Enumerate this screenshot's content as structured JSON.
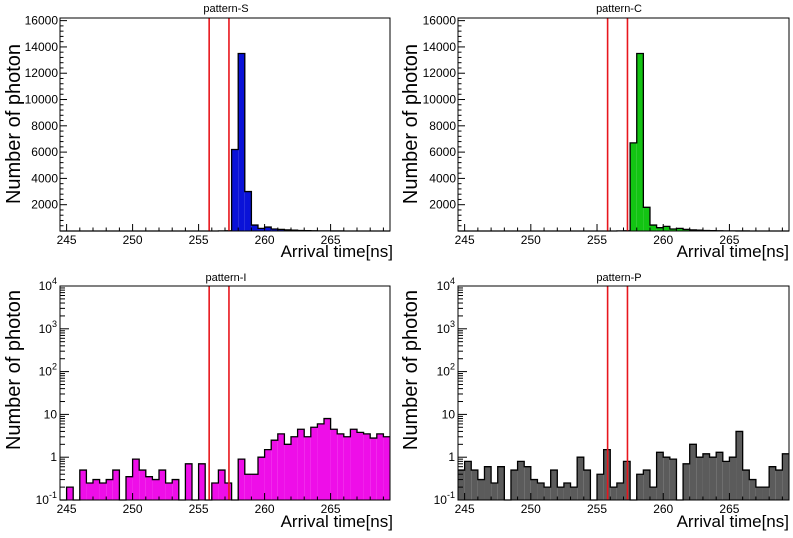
{
  "chart_data": [
    {
      "type": "histogram",
      "title": "pattern-S",
      "xlabel": "Arrival time[ns]",
      "ylabel": "Number of photon",
      "yscale": "linear",
      "xlim": [
        244.5,
        269.5
      ],
      "ylim": [
        0,
        16200
      ],
      "xticks": [
        245,
        250,
        255,
        260,
        265
      ],
      "yticks": [
        2000,
        4000,
        6000,
        8000,
        10000,
        12000,
        14000,
        16000
      ],
      "bin_start": 244.5,
      "bin_width": 0.5,
      "values": [
        0,
        0,
        0,
        0,
        0,
        0,
        0,
        0,
        0,
        0,
        0,
        0,
        0,
        0,
        0,
        0,
        0,
        0,
        0,
        0,
        0,
        0,
        0,
        0,
        10,
        20,
        6200,
        13500,
        3000,
        450,
        200,
        300,
        150,
        120,
        80,
        60,
        40,
        25,
        15,
        10,
        8,
        5,
        3,
        2,
        1,
        1,
        0,
        0,
        0,
        0
      ],
      "cut_lines": [
        255.8,
        257.3
      ],
      "fill_color": "#0a12d8",
      "line_color": "#e8161d"
    },
    {
      "type": "histogram",
      "title": "pattern-C",
      "xlabel": "Arrival time[ns]",
      "ylabel": "Number of photon",
      "yscale": "linear",
      "xlim": [
        244.5,
        269.5
      ],
      "ylim": [
        0,
        16200
      ],
      "xticks": [
        245,
        250,
        255,
        260,
        265
      ],
      "yticks": [
        2000,
        4000,
        6000,
        8000,
        10000,
        12000,
        14000,
        16000
      ],
      "bin_start": 244.5,
      "bin_width": 0.5,
      "values": [
        0,
        0,
        0,
        0,
        0,
        0,
        0,
        0,
        0,
        0,
        0,
        0,
        0,
        0,
        0,
        0,
        0,
        0,
        0,
        0,
        0,
        0,
        0,
        0,
        10,
        20,
        6700,
        13500,
        1800,
        450,
        250,
        350,
        150,
        200,
        120,
        80,
        60,
        40,
        25,
        15,
        10,
        8,
        5,
        3,
        2,
        1,
        0,
        0,
        0,
        0
      ],
      "cut_lines": [
        255.8,
        257.3
      ],
      "fill_color": "#13c413",
      "line_color": "#e8161d"
    },
    {
      "type": "histogram",
      "title": "pattern-I",
      "xlabel": "Arrival time[ns]",
      "ylabel": "Number of photon",
      "yscale": "log",
      "xlim": [
        244.5,
        269.5
      ],
      "ylim": [
        0.1,
        10000
      ],
      "xticks": [
        245,
        250,
        255,
        260,
        265
      ],
      "ytick_labels": [
        "10^-1",
        "1",
        "10",
        "10^2",
        "10^3",
        "10^4"
      ],
      "bin_start": 244.5,
      "bin_width": 0.5,
      "values": [
        0,
        0.2,
        0,
        0.5,
        0.25,
        0.3,
        0.25,
        0.3,
        0.5,
        0,
        0.35,
        0.9,
        0.5,
        0.35,
        0.3,
        0.5,
        0.25,
        0.3,
        0,
        0.7,
        0,
        0.7,
        0,
        0.25,
        0.5,
        0.25,
        0,
        0.9,
        0.4,
        0.4,
        1,
        1.5,
        2.5,
        3.5,
        2,
        3,
        4.5,
        3,
        5,
        6,
        8,
        4.5,
        3.5,
        3,
        4.5,
        3.8,
        3.5,
        2.8,
        3.5,
        3
      ],
      "cut_lines": [
        255.8,
        257.3
      ],
      "fill_color": "#ee0ee8",
      "line_color": "#e8161d"
    },
    {
      "type": "histogram",
      "title": "pattern-P",
      "xlabel": "Arrival time[ns]",
      "ylabel": "Number of photon",
      "yscale": "log",
      "xlim": [
        244.5,
        269.5
      ],
      "ylim": [
        0.1,
        10000
      ],
      "xticks": [
        245,
        250,
        255,
        260,
        265
      ],
      "ytick_labels": [
        "10^-1",
        "1",
        "10",
        "10^2",
        "10^3",
        "10^4"
      ],
      "bin_start": 244.5,
      "bin_width": 0.5,
      "values": [
        0.5,
        0.8,
        0.5,
        0.3,
        0.6,
        0.25,
        0.6,
        0,
        0.5,
        0.8,
        0.6,
        0.3,
        0.25,
        0.2,
        0.5,
        0.2,
        0.25,
        0.2,
        1,
        0.5,
        0,
        0.4,
        1.5,
        0.2,
        0.25,
        0.8,
        0,
        0.4,
        0.5,
        0.2,
        1.3,
        1,
        0.9,
        0,
        0.7,
        2,
        1,
        1.2,
        1,
        1.3,
        0.8,
        1,
        4,
        0.5,
        0.3,
        0.2,
        0.2,
        0.6,
        0.5,
        1.2
      ],
      "cut_lines": [
        255.8,
        257.3
      ],
      "fill_color": "#5b5b5b",
      "line_color": "#e8161d"
    }
  ]
}
